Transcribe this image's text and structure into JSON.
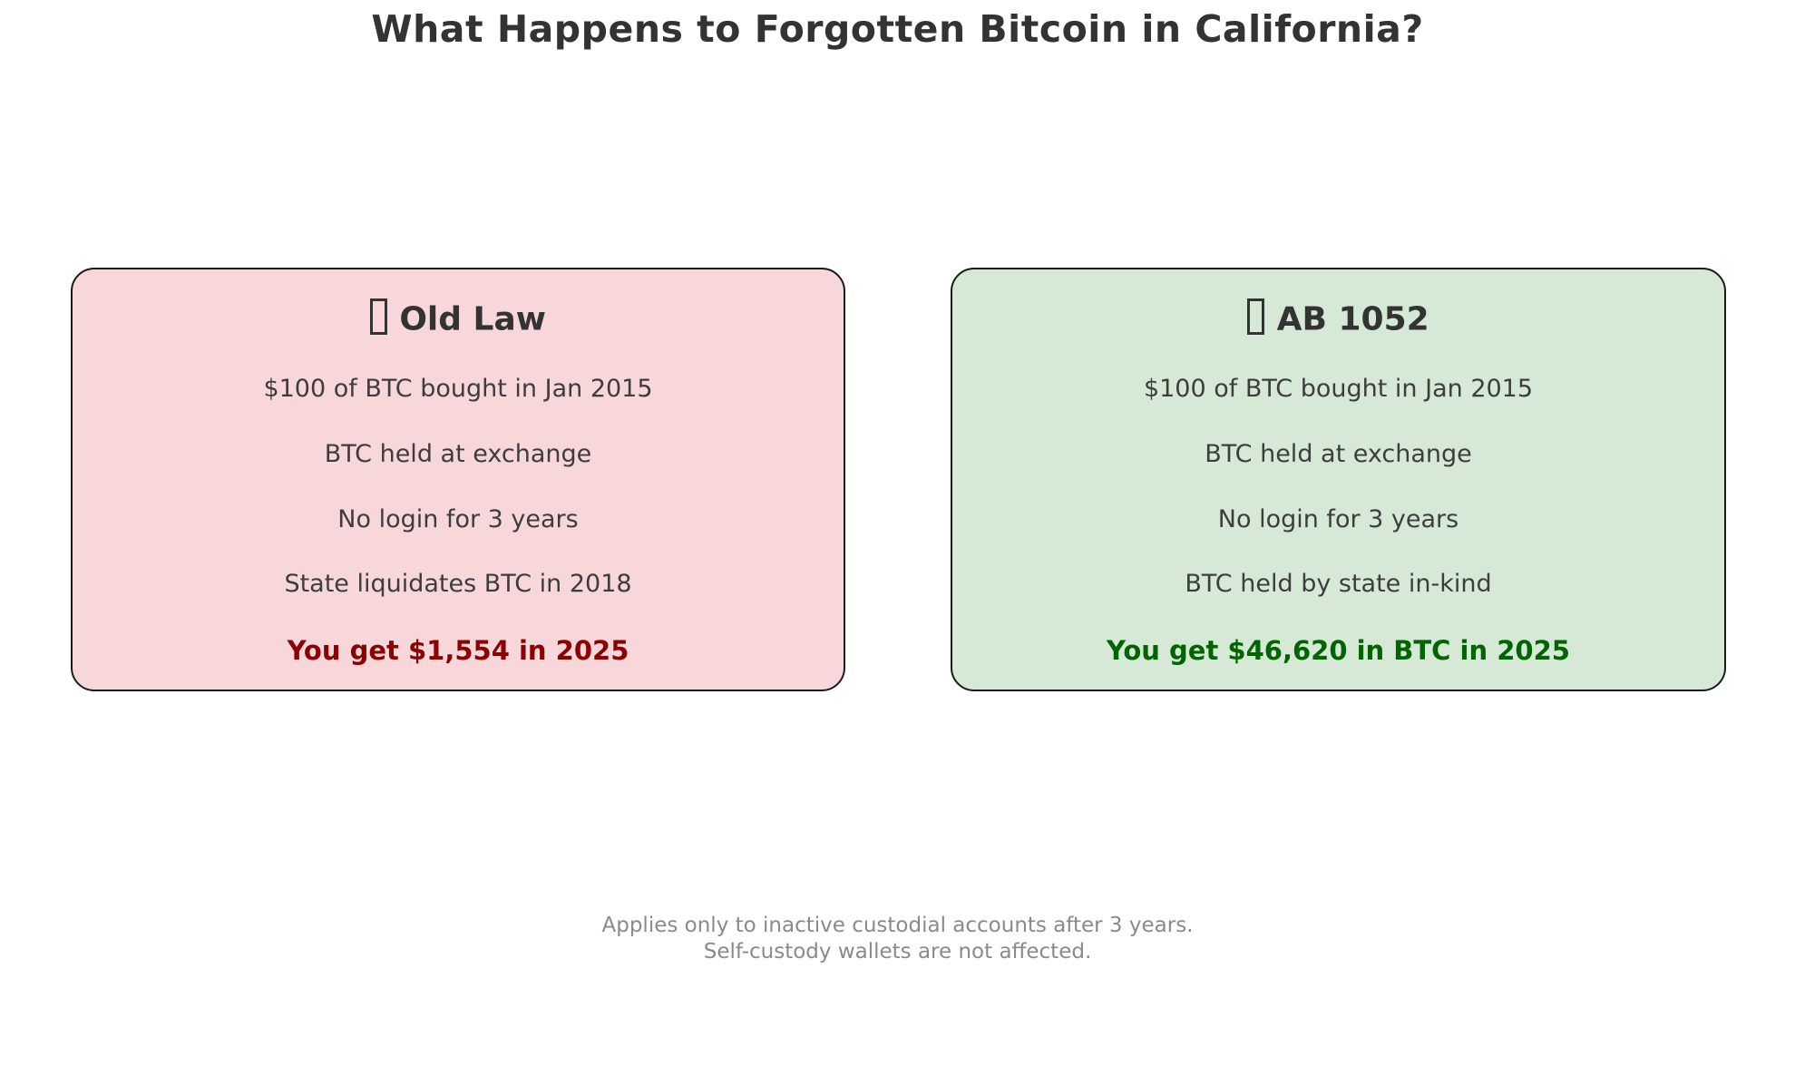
{
  "title": "What Happens to Forgotten Bitcoin in California?",
  "colors": {
    "old_card_background": "#f8d7da",
    "new_card_background": "#d6e9d6",
    "card_border": "#1a1a1a",
    "title_text": "#333333",
    "body_text": "#3d3d3d",
    "loss_result_text": "#8b0000",
    "gain_result_text": "#006400",
    "footnote_text": "#8a8a8a"
  },
  "cards": [
    {
      "id": "old-law",
      "icon": "missing-glyph-box",
      "header": "Old Law",
      "lines": [
        "$100 of BTC bought in Jan 2015",
        "BTC held at exchange",
        "No login for 3 years",
        "State liquidates BTC in 2018"
      ],
      "result": "You get $1,554 in 2025"
    },
    {
      "id": "ab-1052",
      "icon": "missing-glyph-box",
      "header": "AB 1052",
      "lines": [
        "$100 of BTC bought in Jan 2015",
        "BTC held at exchange",
        "No login for 3 years",
        "BTC held by state in-kind"
      ],
      "result": "You get $46,620 in BTC in 2025"
    }
  ],
  "footnote": {
    "line1": "Applies only to inactive custodial accounts after 3 years.",
    "line2": "Self-custody wallets are not affected."
  }
}
